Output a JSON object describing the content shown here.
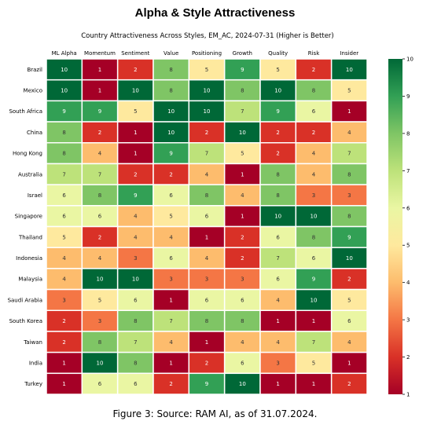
{
  "header": {
    "title": "Alpha & Style Attractiveness"
  },
  "footer": {
    "caption": "Figure 3: Source: RAM AI, as of 31.07.2024."
  },
  "chart_data": {
    "type": "heatmap",
    "title": "Country Attractiveness Across Styles, EM_AC, 2024-07-31 (Higher is Better)",
    "columns": [
      "ML Alpha",
      "Momentum",
      "Sentiment",
      "Value",
      "Positioning",
      "Growth",
      "Quality",
      "Risk",
      "Insider"
    ],
    "rows": [
      "Brazil",
      "Mexico",
      "South Africa",
      "China",
      "Hong Kong",
      "Australia",
      "Israel",
      "Singapore",
      "Thailand",
      "Indonesia",
      "Malaysia",
      "Saudi Arabia",
      "South Korea",
      "Taiwan",
      "India",
      "Turkey"
    ],
    "values": [
      [
        10,
        1,
        2,
        8,
        5,
        9,
        5,
        2,
        10
      ],
      [
        10,
        1,
        10,
        8,
        10,
        8,
        10,
        8,
        5
      ],
      [
        9,
        9,
        5,
        10,
        10,
        7,
        9,
        6,
        1
      ],
      [
        8,
        2,
        1,
        10,
        2,
        10,
        2,
        2,
        4
      ],
      [
        8,
        4,
        1,
        9,
        7,
        5,
        2,
        4,
        7
      ],
      [
        7,
        7,
        2,
        2,
        4,
        1,
        8,
        4,
        8
      ],
      [
        6,
        8,
        9,
        6,
        8,
        4,
        8,
        3,
        3
      ],
      [
        6,
        6,
        4,
        5,
        6,
        1,
        10,
        10,
        8
      ],
      [
        5,
        2,
        4,
        4,
        1,
        2,
        6,
        8,
        9
      ],
      [
        4,
        4,
        3,
        6,
        4,
        2,
        7,
        6,
        10
      ],
      [
        4,
        10,
        10,
        3,
        3,
        3,
        6,
        9,
        2
      ],
      [
        3,
        5,
        6,
        1,
        6,
        6,
        4,
        10,
        5
      ],
      [
        2,
        3,
        8,
        7,
        8,
        8,
        1,
        1,
        6
      ],
      [
        2,
        8,
        7,
        4,
        1,
        4,
        4,
        7,
        4
      ],
      [
        1,
        10,
        8,
        1,
        2,
        6,
        3,
        5,
        1
      ],
      [
        1,
        6,
        6,
        2,
        9,
        10,
        1,
        1,
        2
      ]
    ],
    "colorbar": {
      "min": 1,
      "max": 10,
      "ticks": [
        1,
        2,
        3,
        4,
        5,
        6,
        7,
        8,
        9,
        10
      ]
    },
    "colormap": {
      "1": "#a50026",
      "2": "#d93127",
      "3": "#f47645",
      "4": "#fdbc6d",
      "5": "#fee99e",
      "6": "#eaf6a3",
      "7": "#bde27a",
      "8": "#7fc565",
      "9": "#32a055",
      "10": "#006837"
    }
  }
}
